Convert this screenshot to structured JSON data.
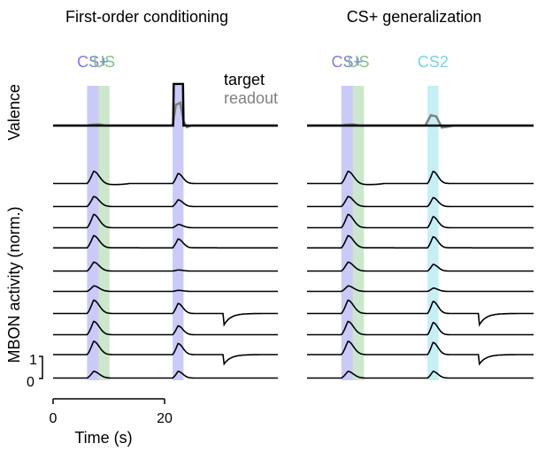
{
  "colors": {
    "cs_plus": "#7b7bf0",
    "us": "#7fc47f",
    "cs2": "#6fd8e0",
    "target": "#000000",
    "readout": "#808080",
    "trace": "#000000"
  },
  "labels": {
    "ylabel_valence": "Valence",
    "ylabel_mbon": "MBON activity (norm.)",
    "xlabel": "Time (s)",
    "scale_top": "1",
    "scale_bottom": "0"
  },
  "chart_data": [
    {
      "type": "line",
      "title": "First-order conditioning",
      "xlabel": "Time (s)",
      "xlim": [
        0,
        41
      ],
      "xticks": [
        0,
        20
      ],
      "stimuli": [
        {
          "label": "CS+",
          "color_key": "cs_plus",
          "start": 6.2,
          "end": 8.3
        },
        {
          "label": "US",
          "color_key": "us",
          "start": 8.3,
          "end": 10.3
        },
        {
          "label": "",
          "color_key": "cs_plus",
          "start": 21.8,
          "end": 23.8
        }
      ],
      "legend": {
        "entries": [
          "target",
          "readout"
        ],
        "placement": "top-right"
      },
      "valence": {
        "target": {
          "x": [
            0,
            21.9,
            22.0,
            23.7,
            23.8,
            41
          ],
          "y": [
            0,
            0,
            1,
            1,
            0,
            0
          ]
        },
        "readout": {
          "x": [
            0,
            6.2,
            7.0,
            8.3,
            9.5,
            21.8,
            22.4,
            23.2,
            23.8,
            24.4,
            25.2,
            41
          ],
          "y": [
            0,
            0,
            0.02,
            0.03,
            0,
            0,
            0.5,
            0.55,
            0.1,
            -0.04,
            0,
            0
          ]
        }
      },
      "mbon_traces": [
        {
          "base": 0.1,
          "cs_peak": 0.55,
          "test_peak": 0.45,
          "dip": 0.05,
          "step": 0.0
        },
        {
          "base": 0.1,
          "cs_peak": 0.45,
          "test_peak": 0.3,
          "dip": 0.0,
          "step": 0.0
        },
        {
          "base": 0.1,
          "cs_peak": 0.6,
          "test_peak": 0.15,
          "dip": 0.0,
          "step": 0.0
        },
        {
          "base": 0.15,
          "cs_peak": 0.55,
          "test_peak": 0.4,
          "dip": 0.0,
          "step": 0.0
        },
        {
          "base": 0.1,
          "cs_peak": 0.4,
          "test_peak": 0.05,
          "dip": 0.0,
          "step": 0.0
        },
        {
          "base": 0.1,
          "cs_peak": 0.25,
          "test_peak": 0.05,
          "dip": 0.0,
          "step": 0.0
        },
        {
          "base": 0.1,
          "cs_peak": 0.6,
          "test_peak": 0.45,
          "dip": 0.0,
          "step": -0.6
        },
        {
          "base": 0.1,
          "cs_peak": 0.6,
          "test_peak": 0.4,
          "dip": 0.0,
          "step": 0.0
        },
        {
          "base": 0.2,
          "cs_peak": 0.6,
          "test_peak": 0.5,
          "dip": 0.0,
          "step": -0.5
        },
        {
          "base": 0.1,
          "cs_peak": 0.3,
          "test_peak": 0.3,
          "dip": 0.0,
          "step": 0.0
        }
      ]
    },
    {
      "type": "line",
      "title": "CS+ generalization",
      "xlim": [
        0,
        41
      ],
      "stimuli": [
        {
          "label": "CS+",
          "color_key": "cs_plus",
          "start": 6.2,
          "end": 8.3
        },
        {
          "label": "US",
          "color_key": "us",
          "start": 8.3,
          "end": 10.3
        },
        {
          "label": "CS2",
          "color_key": "cs2",
          "start": 21.8,
          "end": 23.8
        }
      ],
      "valence": {
        "target": {
          "x": [
            0,
            41
          ],
          "y": [
            0,
            0
          ]
        },
        "readout": {
          "x": [
            0,
            6.2,
            7.0,
            8.3,
            9.5,
            21.4,
            22.4,
            23.4,
            24.4,
            25.4,
            26.5,
            41
          ],
          "y": [
            0,
            0,
            0.02,
            0.03,
            0,
            0,
            0.25,
            0.22,
            -0.05,
            -0.03,
            0,
            0
          ]
        }
      },
      "mbon_traces": [
        {
          "base": 0.1,
          "cs_peak": 0.55,
          "test_peak": 0.55,
          "dip": 0.05,
          "step": 0.0
        },
        {
          "base": 0.1,
          "cs_peak": 0.45,
          "test_peak": 0.4,
          "dip": 0.0,
          "step": 0.0
        },
        {
          "base": 0.1,
          "cs_peak": 0.6,
          "test_peak": 0.5,
          "dip": 0.0,
          "step": 0.0
        },
        {
          "base": 0.15,
          "cs_peak": 0.55,
          "test_peak": 0.5,
          "dip": 0.0,
          "step": 0.0
        },
        {
          "base": 0.1,
          "cs_peak": 0.4,
          "test_peak": 0.3,
          "dip": 0.0,
          "step": 0.0
        },
        {
          "base": 0.1,
          "cs_peak": 0.25,
          "test_peak": 0.15,
          "dip": 0.0,
          "step": 0.0
        },
        {
          "base": 0.1,
          "cs_peak": 0.6,
          "test_peak": 0.55,
          "dip": 0.0,
          "step": -0.6
        },
        {
          "base": 0.1,
          "cs_peak": 0.6,
          "test_peak": 0.55,
          "dip": 0.0,
          "step": 0.0
        },
        {
          "base": 0.2,
          "cs_peak": 0.6,
          "test_peak": 0.55,
          "dip": 0.0,
          "step": -0.5
        },
        {
          "base": 0.1,
          "cs_peak": 0.3,
          "test_peak": 0.3,
          "dip": 0.0,
          "step": 0.0
        }
      ]
    }
  ]
}
